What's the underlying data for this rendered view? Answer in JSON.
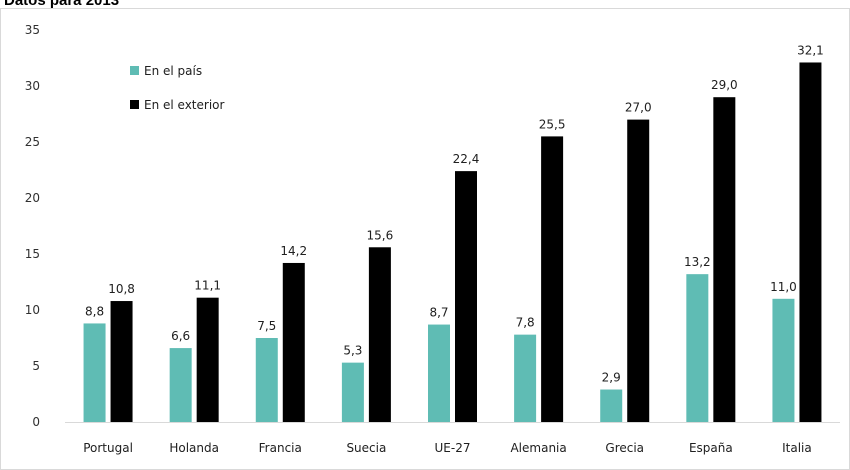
{
  "page": {
    "title": "Datos para 2013"
  },
  "chart_data": {
    "type": "bar",
    "title": "",
    "xlabel": "",
    "ylabel": "",
    "ylim": [
      0,
      35
    ],
    "yticks": [
      0,
      5,
      10,
      15,
      20,
      25,
      30,
      35
    ],
    "grid": false,
    "legend_position": "top-left",
    "categories": [
      "Portugal",
      "Holanda",
      "Francia",
      "Suecia",
      "UE-27",
      "Alemania",
      "Grecia",
      "España",
      "Italia"
    ],
    "series": [
      {
        "name": "En el país",
        "color": "#5fbcb4",
        "values": [
          8.8,
          6.6,
          7.5,
          5.3,
          8.7,
          7.8,
          2.9,
          13.2,
          11.0
        ],
        "labels": [
          "8,8",
          "6,6",
          "7,5",
          "5,3",
          "8,7",
          "7,8",
          "2,9",
          "13,2",
          "11,0"
        ]
      },
      {
        "name": "En el exterior",
        "color": "#000000",
        "values": [
          10.8,
          11.1,
          14.2,
          15.6,
          22.4,
          25.5,
          27.0,
          29.0,
          32.1
        ],
        "labels": [
          "10,8",
          "11,1",
          "14,2",
          "15,6",
          "22,4",
          "25,5",
          "27,0",
          "29,0",
          "32,1"
        ]
      }
    ]
  }
}
